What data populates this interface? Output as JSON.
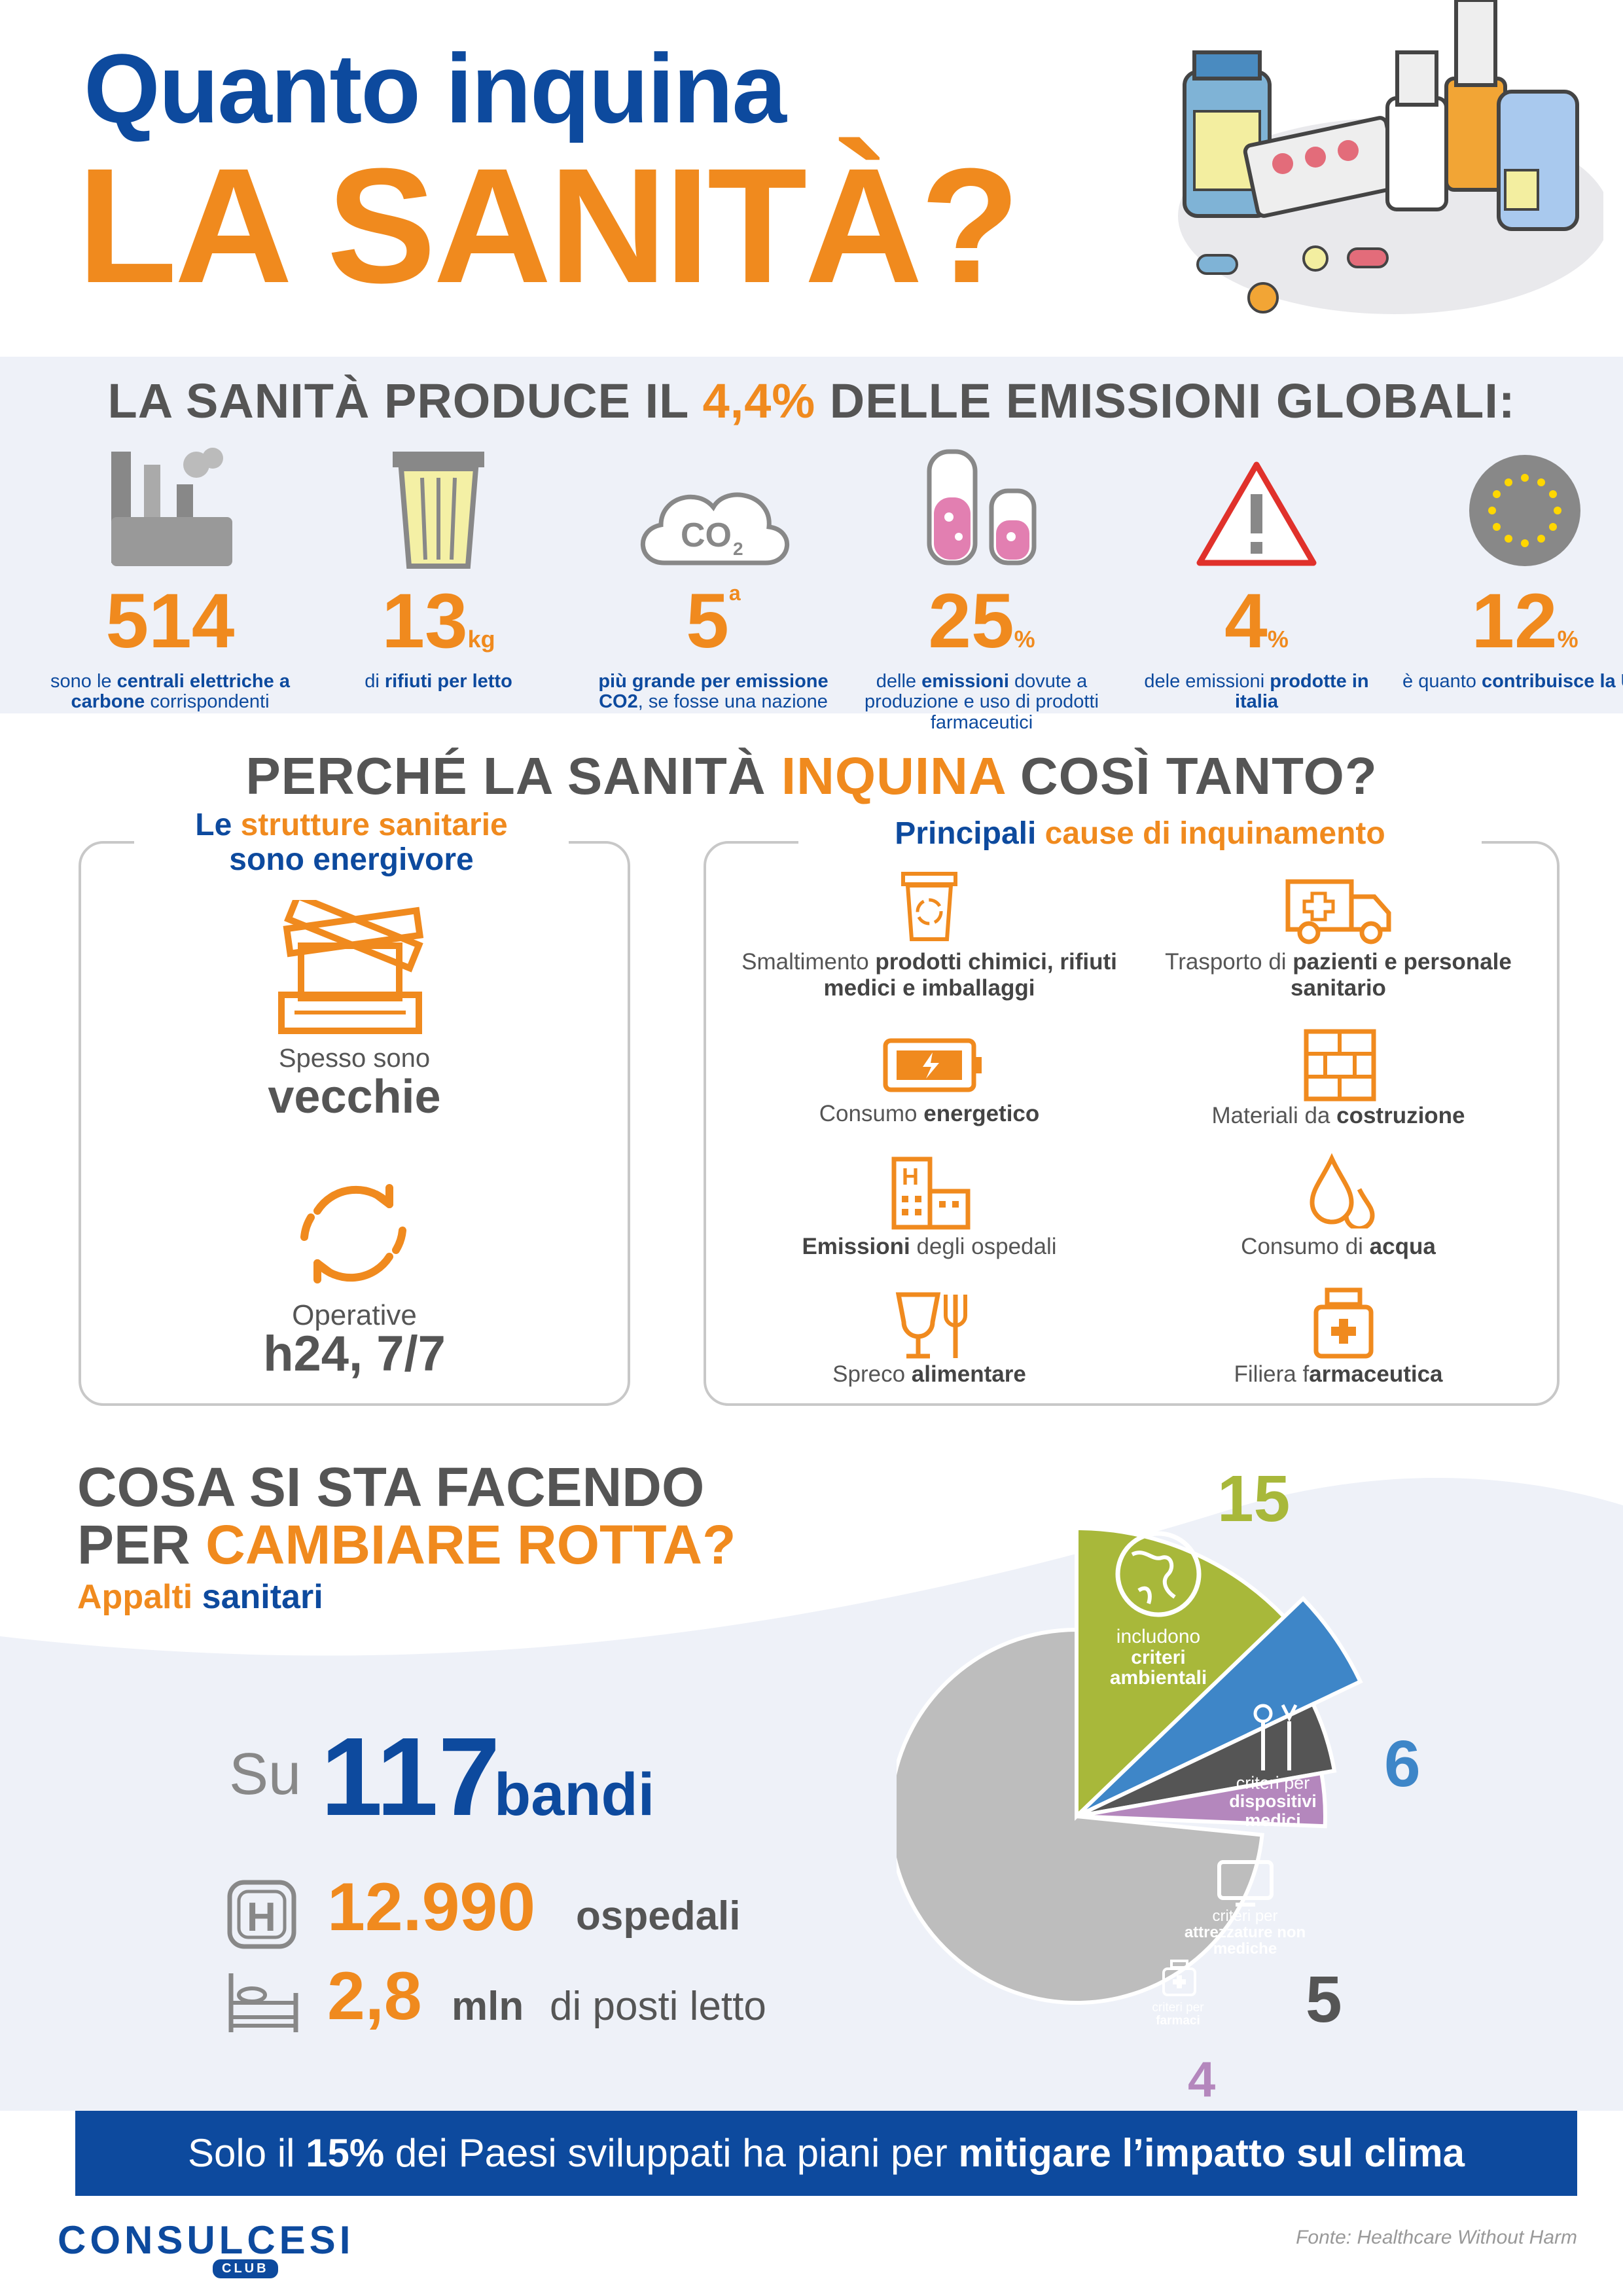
{
  "header": {
    "title_line1": "Quanto inquina",
    "title_line2": "LA SANITÀ?"
  },
  "emissions": {
    "headline_pre": "LA SANITÀ PRODUCE IL ",
    "headline_pct": "4,4%",
    "headline_post": " DELLE EMISSIONI GLOBALI:",
    "stats": [
      {
        "icon": "power-plant-icon",
        "value": "514",
        "unit": "",
        "desc_pre": "sono le ",
        "desc_bold": "centrali elettriche a carbone",
        "desc_post": " corrispondenti"
      },
      {
        "icon": "trash-bin-icon",
        "value": "13",
        "unit": "kg",
        "desc_pre": "di ",
        "desc_bold": "rifiuti per letto",
        "desc_post": ""
      },
      {
        "icon": "co2-cloud-icon",
        "value": "5",
        "unit": "a",
        "desc_pre": "",
        "desc_bold": "più grande per emissione CO2",
        "desc_post": ", se fosse una nazione"
      },
      {
        "icon": "lab-beakers-icon",
        "value": "25",
        "unit": "%",
        "desc_pre": "delle ",
        "desc_bold": "emissioni",
        "desc_post": " dovute a produzione e uso di prodotti farmaceutici"
      },
      {
        "icon": "warning-icon",
        "value": "4",
        "unit": "%",
        "desc_pre": "dele emissioni ",
        "desc_bold": "prodotte in italia",
        "desc_post": ""
      },
      {
        "icon": "eu-flag-icon",
        "value": "12",
        "unit": "%",
        "desc_pre": "è quanto ",
        "desc_bold": "contribuisce la UE",
        "desc_post": ""
      }
    ]
  },
  "why": {
    "headline_pre": "PERCHÉ LA SANITÀ ",
    "headline_highlight": "INQUINA",
    "headline_post": " COSÌ TANTO?",
    "left": {
      "title_a": "Le ",
      "title_b": "strutture sanitarie",
      "title_c": "sono energivore",
      "item1_small": "Spesso sono",
      "item1_big": "vecchie",
      "item2_small": "Operative",
      "item2_big": "h24, 7/7"
    },
    "right": {
      "title_a": "Principali ",
      "title_b": "cause di inquinamento",
      "causes": [
        {
          "icon": "recycle-bin-icon",
          "pre": "Smaltimento ",
          "bold": "prodotti chimici, rifiuti medici e imballaggi",
          "post": ""
        },
        {
          "icon": "ambulance-icon",
          "pre": "Trasporto di ",
          "bold": "pazienti e personale sanitario",
          "post": ""
        },
        {
          "icon": "battery-icon",
          "pre": "Consumo ",
          "bold": "energetico",
          "post": ""
        },
        {
          "icon": "bricks-icon",
          "pre": "Materiali da ",
          "bold": "costruzione",
          "post": ""
        },
        {
          "icon": "hospital-building-icon",
          "pre": "",
          "bold": "Emissioni",
          "post": " degli ospedali"
        },
        {
          "icon": "water-drops-icon",
          "pre": "Consumo di ",
          "bold": "acqua",
          "post": ""
        },
        {
          "icon": "glass-fork-icon",
          "pre": "Spreco ",
          "bold": "alimentare",
          "post": ""
        },
        {
          "icon": "medicine-bottle-icon",
          "pre": "Filiera f",
          "bold": "armaceutica",
          "post": ""
        }
      ]
    }
  },
  "action": {
    "line1": "COSA SI STA FACENDO",
    "line2_pre": "PER ",
    "line2_highlight": "CAMBIARE ROTTA?",
    "sub_a": "Appalti",
    "sub_b": " sanitari",
    "su": "Su",
    "bandi_num": "117",
    "bandi_label": "bandi",
    "hospitals_num": "12.990",
    "hospitals_label": "ospedali",
    "beds_num": "2,8",
    "beds_unit": "mln",
    "beds_label": "di posti letto"
  },
  "chart_data": {
    "type": "pie",
    "total": 117,
    "series": [
      {
        "value": 15,
        "label_pre": "includono",
        "label_bold": "criteri ambientali",
        "color": "#a8b83a"
      },
      {
        "value": 6,
        "label_pre": "criteri per",
        "label_bold": "dispositivi medici",
        "color": "#3e86c8"
      },
      {
        "value": 5,
        "label_pre": "criteri per",
        "label_bold": "attrezzature non mediche",
        "color": "#555555"
      },
      {
        "value": 4,
        "label_pre": "criteri per",
        "label_bold": "farmaci",
        "color": "#b487bd"
      }
    ],
    "remainder_color": "#bdbdbd"
  },
  "footer": {
    "bar_pre": "Solo il ",
    "bar_pct": "15%",
    "bar_mid": " dei Paesi sviluppati ha piani per ",
    "bar_bold": "mitigare l’impatto sul clima",
    "logo": "CONSULCESI",
    "logo_sub": "CLUB",
    "source": "Fonte: Healthcare Without Harm"
  },
  "colors": {
    "orange": "#f08a1e",
    "blue": "#0d4a9e",
    "gray": "#555555",
    "band": "#eef1f8"
  }
}
